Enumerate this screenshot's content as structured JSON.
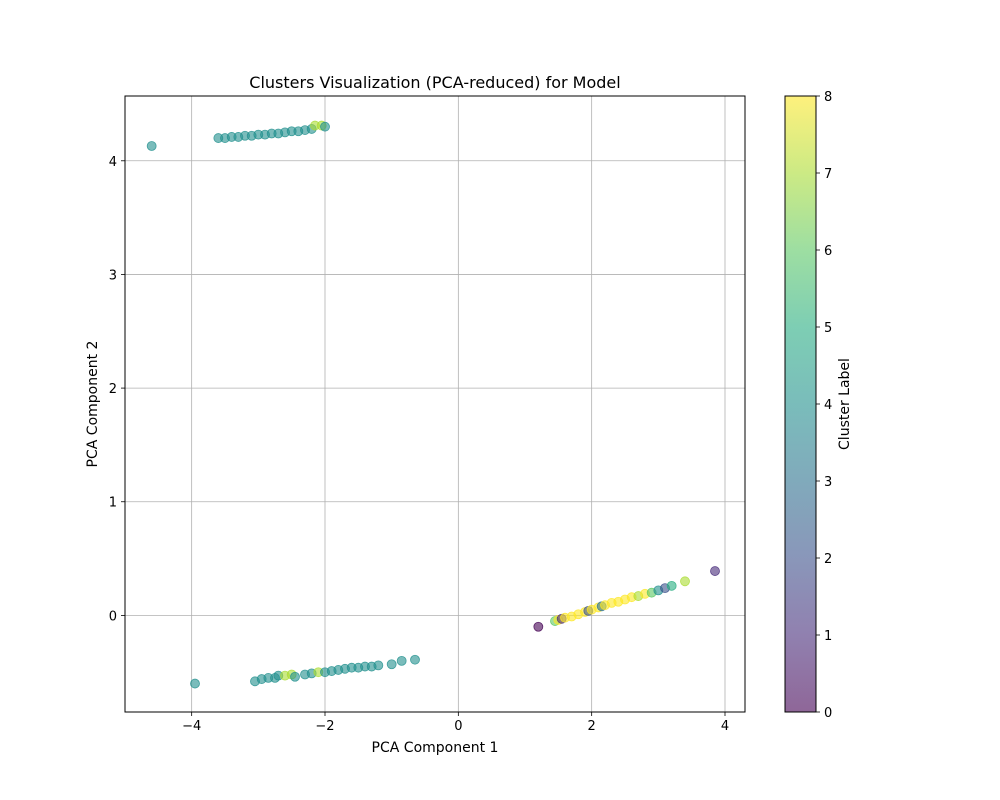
{
  "chart_data": {
    "type": "scatter",
    "title": "Clusters Visualization (PCA-reduced) for Model",
    "xlabel": "PCA Component 1",
    "ylabel": "PCA Component 2",
    "xlim": [
      -5.0,
      4.3
    ],
    "ylim": [
      -0.85,
      4.57
    ],
    "xticks": [
      -4,
      -2,
      0,
      2,
      4
    ],
    "xtick_labels": [
      "−4",
      "−2",
      "0",
      "2",
      "4"
    ],
    "yticks": [
      0,
      1,
      2,
      3,
      4
    ],
    "ytick_labels": [
      "0",
      "1",
      "2",
      "3",
      "4"
    ],
    "grid": true,
    "colorbar": {
      "label": "Cluster Label",
      "min": 0,
      "max": 8,
      "ticks": [
        0,
        1,
        2,
        3,
        4,
        5,
        6,
        7,
        8
      ],
      "colormap": "viridis",
      "colors": [
        "#440154",
        "#472c7a",
        "#3b518b",
        "#2c718e",
        "#21908d",
        "#27ad81",
        "#5cc863",
        "#aadc32",
        "#fde725"
      ],
      "alpha": 0.6
    },
    "points": [
      {
        "x": -4.6,
        "y": 4.13,
        "label": 4
      },
      {
        "x": -3.95,
        "y": -0.6,
        "label": 4
      },
      {
        "x": -3.6,
        "y": 4.2,
        "label": 4
      },
      {
        "x": -3.5,
        "y": 4.2,
        "label": 4
      },
      {
        "x": -3.4,
        "y": 4.21,
        "label": 4
      },
      {
        "x": -3.3,
        "y": 4.21,
        "label": 4
      },
      {
        "x": -3.2,
        "y": 4.22,
        "label": 4
      },
      {
        "x": -3.1,
        "y": 4.22,
        "label": 4
      },
      {
        "x": -3.0,
        "y": 4.23,
        "label": 4
      },
      {
        "x": -2.9,
        "y": 4.23,
        "label": 4
      },
      {
        "x": -2.8,
        "y": 4.24,
        "label": 4
      },
      {
        "x": -2.7,
        "y": 4.24,
        "label": 4
      },
      {
        "x": -2.6,
        "y": 4.25,
        "label": 4
      },
      {
        "x": -2.5,
        "y": 4.26,
        "label": 4
      },
      {
        "x": -2.4,
        "y": 4.26,
        "label": 4
      },
      {
        "x": -2.3,
        "y": 4.27,
        "label": 4
      },
      {
        "x": -2.2,
        "y": 4.28,
        "label": 4
      },
      {
        "x": -2.15,
        "y": 4.31,
        "label": 7
      },
      {
        "x": -2.05,
        "y": 4.31,
        "label": 7
      },
      {
        "x": -2.0,
        "y": 4.3,
        "label": 4
      },
      {
        "x": -3.05,
        "y": -0.58,
        "label": 4
      },
      {
        "x": -2.95,
        "y": -0.56,
        "label": 4
      },
      {
        "x": -2.85,
        "y": -0.55,
        "label": 4
      },
      {
        "x": -2.75,
        "y": -0.55,
        "label": 4
      },
      {
        "x": -2.7,
        "y": -0.53,
        "label": 4
      },
      {
        "x": -2.6,
        "y": -0.53,
        "label": 7
      },
      {
        "x": -2.5,
        "y": -0.52,
        "label": 7
      },
      {
        "x": -2.45,
        "y": -0.54,
        "label": 4
      },
      {
        "x": -2.3,
        "y": -0.52,
        "label": 4
      },
      {
        "x": -2.2,
        "y": -0.51,
        "label": 4
      },
      {
        "x": -2.1,
        "y": -0.5,
        "label": 7
      },
      {
        "x": -2.0,
        "y": -0.5,
        "label": 4
      },
      {
        "x": -1.9,
        "y": -0.49,
        "label": 4
      },
      {
        "x": -1.8,
        "y": -0.48,
        "label": 4
      },
      {
        "x": -1.7,
        "y": -0.47,
        "label": 4
      },
      {
        "x": -1.6,
        "y": -0.46,
        "label": 4
      },
      {
        "x": -1.5,
        "y": -0.46,
        "label": 4
      },
      {
        "x": -1.4,
        "y": -0.45,
        "label": 4
      },
      {
        "x": -1.3,
        "y": -0.45,
        "label": 4
      },
      {
        "x": -1.2,
        "y": -0.44,
        "label": 4
      },
      {
        "x": -1.0,
        "y": -0.43,
        "label": 4
      },
      {
        "x": -0.85,
        "y": -0.4,
        "label": 4
      },
      {
        "x": -0.65,
        "y": -0.39,
        "label": 4
      },
      {
        "x": 1.2,
        "y": -0.1,
        "label": 0
      },
      {
        "x": 1.45,
        "y": -0.05,
        "label": 6
      },
      {
        "x": 1.5,
        "y": -0.04,
        "label": 8
      },
      {
        "x": 1.55,
        "y": -0.03,
        "label": 1
      },
      {
        "x": 1.6,
        "y": -0.02,
        "label": 8
      },
      {
        "x": 1.7,
        "y": -0.01,
        "label": 8
      },
      {
        "x": 1.8,
        "y": 0.01,
        "label": 8
      },
      {
        "x": 1.9,
        "y": 0.03,
        "label": 8
      },
      {
        "x": 1.95,
        "y": 0.04,
        "label": 2
      },
      {
        "x": 2.0,
        "y": 0.05,
        "label": 8
      },
      {
        "x": 2.1,
        "y": 0.07,
        "label": 8
      },
      {
        "x": 2.15,
        "y": 0.08,
        "label": 3
      },
      {
        "x": 2.2,
        "y": 0.09,
        "label": 8
      },
      {
        "x": 2.3,
        "y": 0.11,
        "label": 8
      },
      {
        "x": 2.4,
        "y": 0.12,
        "label": 8
      },
      {
        "x": 2.5,
        "y": 0.14,
        "label": 8
      },
      {
        "x": 2.6,
        "y": 0.16,
        "label": 8
      },
      {
        "x": 2.7,
        "y": 0.17,
        "label": 7
      },
      {
        "x": 2.8,
        "y": 0.19,
        "label": 8
      },
      {
        "x": 2.9,
        "y": 0.2,
        "label": 6
      },
      {
        "x": 3.0,
        "y": 0.22,
        "label": 4
      },
      {
        "x": 3.1,
        "y": 0.24,
        "label": 2
      },
      {
        "x": 3.2,
        "y": 0.26,
        "label": 5
      },
      {
        "x": 3.4,
        "y": 0.3,
        "label": 7
      },
      {
        "x": 3.85,
        "y": 0.39,
        "label": 1
      }
    ]
  }
}
